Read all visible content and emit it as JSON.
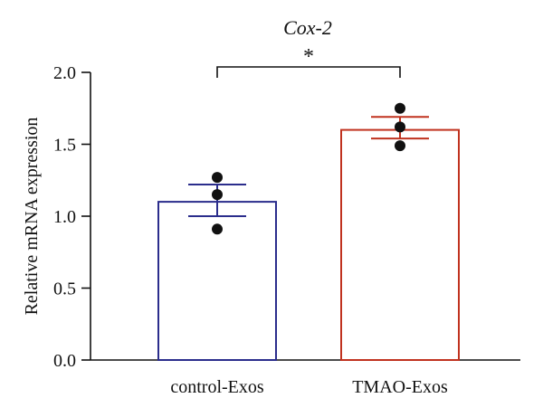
{
  "chart_data": {
    "type": "bar",
    "title": "Cox-2",
    "ylabel": "Relative mRNA expression",
    "xlabel": "",
    "ylim": [
      0,
      2.0
    ],
    "yticks": [
      0.0,
      0.5,
      1.0,
      1.5,
      2.0
    ],
    "ytick_labels": [
      "0.0",
      "0.5",
      "1.0",
      "1.5",
      "2.0"
    ],
    "grid": false,
    "categories": [
      "control-Exos",
      "TMAO-Exos"
    ],
    "values": [
      1.1,
      1.6
    ],
    "error_upper": [
      1.22,
      1.69
    ],
    "error_lower": [
      1.0,
      1.54
    ],
    "points": [
      [
        1.27,
        1.15,
        0.91
      ],
      [
        1.75,
        1.62,
        1.49
      ]
    ],
    "colors": [
      "#2b2d8c",
      "#c0321f"
    ],
    "point_color": "#111111",
    "significance": {
      "label": "*",
      "between": [
        "control-Exos",
        "TMAO-Exos"
      ],
      "level": 2.0
    }
  }
}
